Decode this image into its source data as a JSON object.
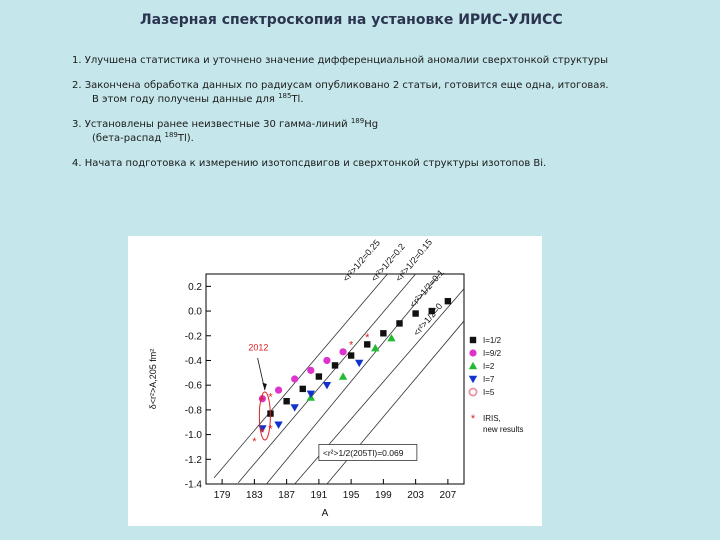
{
  "title": "Лазерная спектроскопия на установке ИРИС-УЛИСС",
  "items": [
    {
      "lines": [
        {
          "text": "1. Улучшена статистика и уточнено значение дифференциальной аномалии сверхтонкой структуры"
        }
      ]
    },
    {
      "lines": [
        {
          "text": "2.  Закончена обработка данных по радиусам опубликовано 2 статьи, готовится еще одна, итоговая."
        },
        {
          "pre": "В этом году получены данные для ",
          "sup": "185",
          "post": "Tl."
        }
      ]
    },
    {
      "lines": [
        {
          "pre": "3. Установлены ранее неизвестные 30  гамма-линий ",
          "sup": "189",
          "post": "Hg"
        },
        {
          "pre": "(бета-распад ",
          "sup": "189",
          "post": "Tl)."
        }
      ]
    },
    {
      "lines": [
        {
          "text": "4. Начата подготовка к  измерению изотопсдвигов и сверхтонкой структуры изотопов Bi."
        }
      ]
    }
  ],
  "chart_data": {
    "type": "scatter",
    "xlabel": "A",
    "ylabel": "δ<r²>A,205  fm²",
    "xlim": [
      177,
      209
    ],
    "ylim": [
      -1.4,
      0.3
    ],
    "x_ticks": [
      179,
      183,
      187,
      191,
      195,
      199,
      203,
      207
    ],
    "y_ticks": [
      0.2,
      0.0,
      -0.2,
      -0.4,
      -0.6,
      -0.8,
      -1.0,
      -1.2,
      -1.4
    ],
    "y_tick_labels": [
      "0.2",
      "0.0",
      "-0.2",
      "-0.4",
      "-0.6",
      "-0.8",
      "-1.0",
      "-1.2",
      "-1.4"
    ],
    "series": [
      {
        "name": "I=1/2",
        "marker": "square",
        "color": "#111111",
        "points": [
          [
            185,
            -0.83
          ],
          [
            187,
            -0.73
          ],
          [
            189,
            -0.63
          ],
          [
            191,
            -0.53
          ],
          [
            193,
            -0.44
          ],
          [
            195,
            -0.36
          ],
          [
            197,
            -0.27
          ],
          [
            199,
            -0.18
          ],
          [
            201,
            -0.1
          ],
          [
            203,
            -0.02
          ],
          [
            205,
            0.0
          ],
          [
            207,
            0.08
          ]
        ]
      },
      {
        "name": "I=9/2",
        "marker": "circle",
        "color": "#dd33cc",
        "points": [
          [
            184,
            -0.71
          ],
          [
            186,
            -0.64
          ],
          [
            188,
            -0.55
          ],
          [
            190,
            -0.48
          ],
          [
            192,
            -0.4
          ],
          [
            194,
            -0.33
          ]
        ]
      },
      {
        "name": "I=2",
        "marker": "triangle-up",
        "color": "#22bb33",
        "points": [
          [
            190,
            -0.7
          ],
          [
            194,
            -0.53
          ],
          [
            198,
            -0.3
          ],
          [
            200,
            -0.22
          ]
        ]
      },
      {
        "name": "I=7",
        "marker": "triangle-down",
        "color": "#1133cc",
        "points": [
          [
            184,
            -0.95
          ],
          [
            186,
            -0.92
          ],
          [
            188,
            -0.78
          ],
          [
            190,
            -0.67
          ],
          [
            192,
            -0.6
          ],
          [
            196,
            -0.42
          ]
        ]
      },
      {
        "name": "I=5",
        "marker": "circle-open",
        "color": "#ee8899",
        "points": []
      },
      {
        "name": "IRIS, new results",
        "marker": "star",
        "color": "#dd2222",
        "points": [
          [
            183,
            -1.05
          ],
          [
            184,
            -0.98
          ],
          [
            185,
            -0.95
          ],
          [
            184,
            -0.72
          ],
          [
            185,
            -0.69
          ],
          [
            195,
            -0.27
          ],
          [
            197,
            -0.21
          ]
        ]
      }
    ],
    "lines": [
      {
        "label": "<r²>1/2=0.25",
        "x1": 178,
        "y1": -1.35,
        "x2": 199.5,
        "y2": 0.3
      },
      {
        "label": "<r²>1/2=0.2",
        "x1": 181,
        "y1": -1.39,
        "x2": 203,
        "y2": 0.3
      },
      {
        "label": "<r²>1/2=0.15",
        "x1": 184.5,
        "y1": -1.4,
        "x2": 206,
        "y2": 0.3
      },
      {
        "label": "<r²>1/2=0.1",
        "x1": 188,
        "y1": -1.4,
        "x2": 209,
        "y2": 0.18
      },
      {
        "label": "<r²>1/2=0",
        "x1": 192,
        "y1": -1.4,
        "x2": 209,
        "y2": -0.08
      }
    ],
    "annotations": {
      "year": "2012",
      "box": "<r²>1/2(205Tl)=0.069"
    },
    "legend_position": "right"
  }
}
